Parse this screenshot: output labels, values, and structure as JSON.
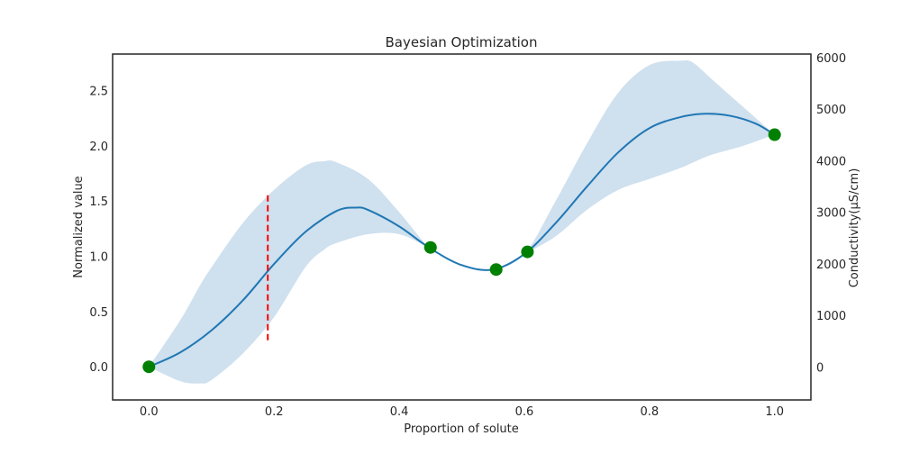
{
  "chart_data": {
    "type": "line",
    "title": "Bayesian Optimization",
    "xlabel": "Proportion of solute",
    "ylabel": "Normalized value",
    "ylabel_right": "Conductivity(µS/cm)",
    "xlim": [
      -0.058,
      1.058
    ],
    "ylim": [
      -0.3,
      2.83
    ],
    "ylim_right": [
      -640,
      6070
    ],
    "x_ticks": [
      0.0,
      0.2,
      0.4,
      0.6,
      0.8,
      1.0
    ],
    "x_tick_labels": [
      "0.0",
      "0.2",
      "0.4",
      "0.6",
      "0.8",
      "1.0"
    ],
    "y_ticks": [
      0.0,
      0.5,
      1.0,
      1.5,
      2.0,
      2.5
    ],
    "y_tick_labels": [
      "0.0",
      "0.5",
      "1.0",
      "1.5",
      "2.0",
      "2.5"
    ],
    "y_right_ticks": [
      0,
      1000,
      2000,
      3000,
      4000,
      5000,
      6000
    ],
    "y_right_tick_labels": [
      "0",
      "1000",
      "2000",
      "3000",
      "4000",
      "5000",
      "6000"
    ],
    "grid": false,
    "colors": {
      "mean": "#1f77b4",
      "band": "#cfe0ee",
      "observed": "#008000",
      "candidate": "#ff0000",
      "frame": "#262626"
    },
    "series": [
      {
        "kind": "mean_line",
        "x": [
          0.0,
          0.05,
          0.1,
          0.15,
          0.2,
          0.25,
          0.3,
          0.33,
          0.35,
          0.4,
          0.45,
          0.5,
          0.55,
          0.6,
          0.65,
          0.7,
          0.75,
          0.8,
          0.85,
          0.89,
          0.93,
          0.97,
          1.0
        ],
        "y": [
          0.0,
          0.13,
          0.33,
          0.6,
          0.93,
          1.22,
          1.41,
          1.44,
          1.42,
          1.27,
          1.07,
          0.92,
          0.88,
          1.02,
          1.3,
          1.63,
          1.94,
          2.16,
          2.26,
          2.29,
          2.27,
          2.2,
          2.1
        ]
      },
      {
        "kind": "confidence_band",
        "x": [
          0.0,
          0.05,
          0.08,
          0.1,
          0.15,
          0.2,
          0.25,
          0.28,
          0.3,
          0.35,
          0.4,
          0.45,
          0.5,
          0.55,
          0.6,
          0.65,
          0.7,
          0.75,
          0.8,
          0.85,
          0.87,
          0.9,
          0.95,
          1.0
        ],
        "lower": [
          0.0,
          -0.13,
          -0.15,
          -0.12,
          0.12,
          0.45,
          0.9,
          1.06,
          1.12,
          1.2,
          1.2,
          1.07,
          0.92,
          0.88,
          1.02,
          1.18,
          1.42,
          1.6,
          1.7,
          1.8,
          1.85,
          1.92,
          2.0,
          2.1
        ],
        "upper": [
          0.0,
          0.42,
          0.72,
          0.9,
          1.3,
          1.6,
          1.82,
          1.86,
          1.85,
          1.7,
          1.4,
          1.07,
          0.92,
          0.88,
          1.02,
          1.5,
          2.02,
          2.48,
          2.73,
          2.77,
          2.75,
          2.6,
          2.35,
          2.1
        ]
      }
    ],
    "observed_points": {
      "x": [
        0.0,
        0.45,
        0.555,
        0.605,
        1.0
      ],
      "y": [
        0.0,
        1.08,
        0.88,
        1.04,
        2.1
      ]
    },
    "candidate_line": {
      "x": 0.19,
      "y_range": [
        0.24,
        1.56
      ]
    }
  }
}
